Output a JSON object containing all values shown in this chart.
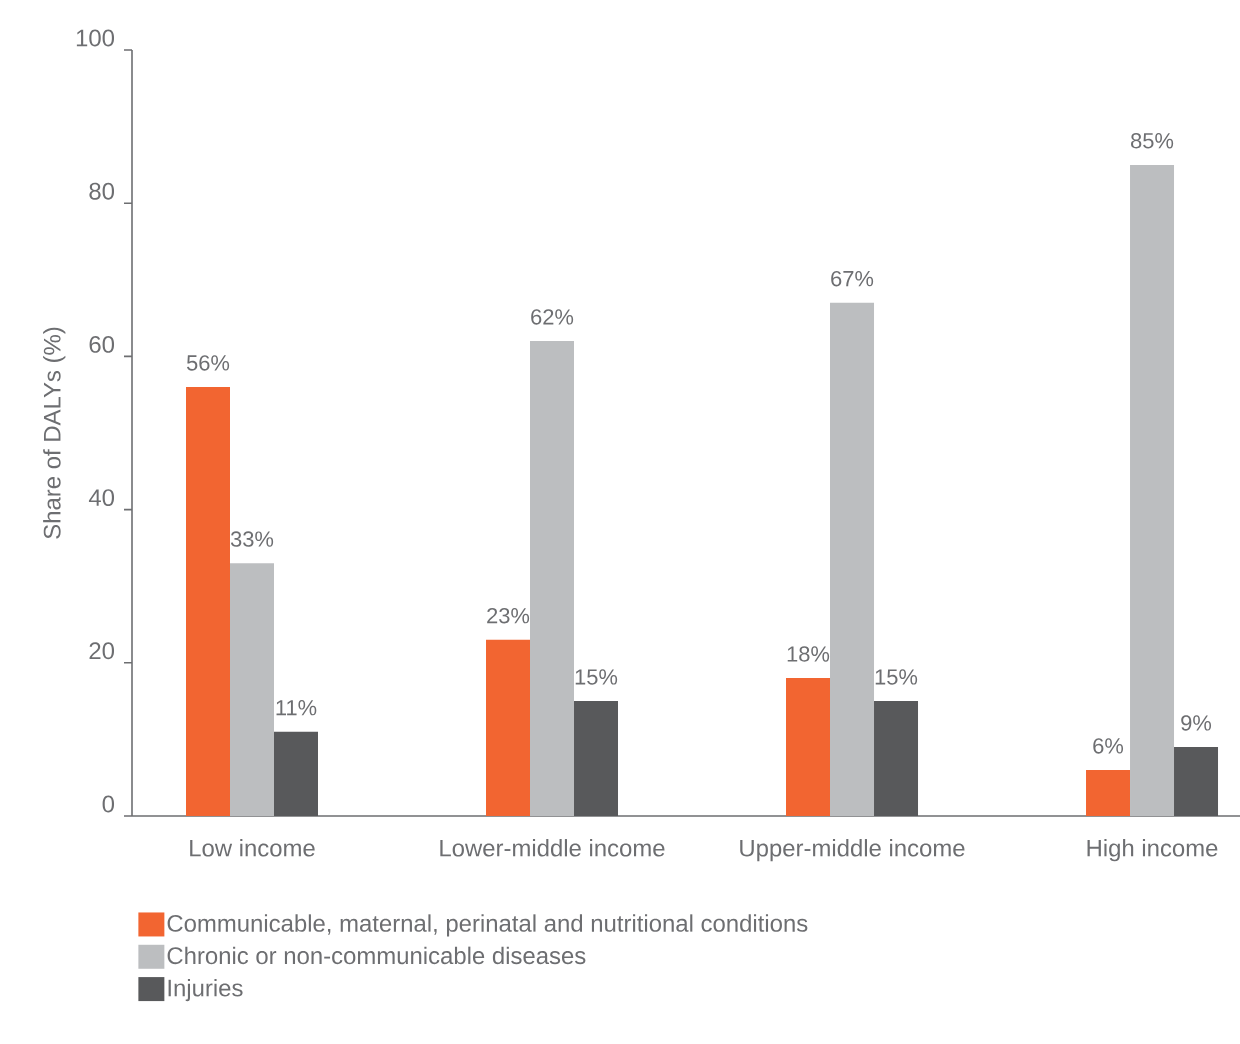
{
  "chart_data": {
    "type": "bar",
    "ylabel": "Share of DALYs (%)",
    "categories": [
      "Low income",
      "Lower-middle income",
      "Upper-middle income",
      "High income"
    ],
    "series": [
      {
        "name": "Communicable, maternal, perinatal and nutritional conditions",
        "color": "#f26531",
        "values": [
          56,
          23,
          18,
          6
        ],
        "value_labels": [
          "56%",
          "23%",
          "18%",
          "6%"
        ]
      },
      {
        "name": "Chronic or non-communicable diseases",
        "color": "#bcbec0",
        "values": [
          33,
          62,
          67,
          85
        ],
        "value_labels": [
          "33%",
          "62%",
          "67%",
          "85%"
        ]
      },
      {
        "name": "Injuries",
        "color": "#58595b",
        "values": [
          11,
          15,
          15,
          9
        ],
        "value_labels": [
          "11%",
          "15%",
          "15%",
          "9%"
        ]
      }
    ],
    "ylim": [
      0,
      100
    ],
    "yticks": [
      0,
      20,
      40,
      60,
      80,
      100
    ],
    "legend": "bottom left"
  }
}
